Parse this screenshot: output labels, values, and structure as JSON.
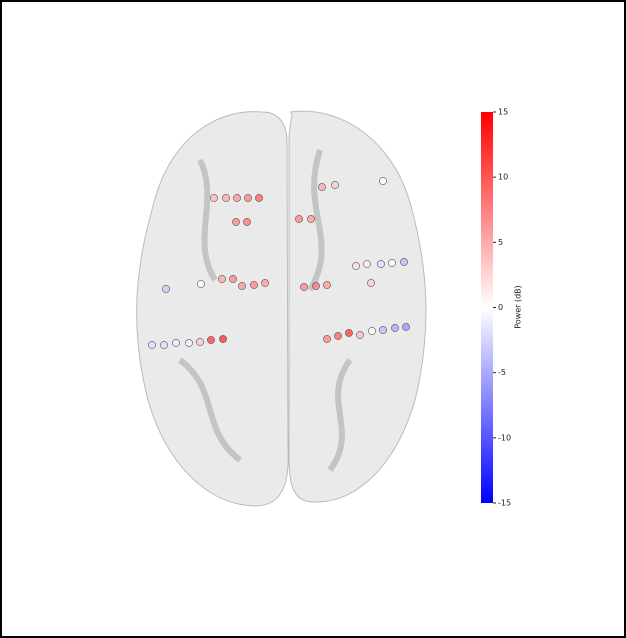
{
  "chart_data": {
    "type": "electrodes",
    "colorbar_label": "Power (dB)",
    "clim": [
      -15,
      15
    ],
    "cticks": [
      -15,
      -10,
      -5,
      0,
      5,
      10,
      15
    ],
    "cmap": "bwr",
    "values": [
      4,
      5,
      6,
      7,
      9,
      7,
      8,
      5,
      7,
      6,
      7,
      6,
      0,
      -3,
      -2,
      -2,
      -1,
      -1,
      3,
      11,
      12,
      5,
      3,
      0,
      7,
      6,
      7,
      8,
      6,
      3,
      2,
      1,
      -2,
      0,
      -4,
      7,
      9,
      11,
      4,
      0,
      -4,
      -5,
      -6
    ]
  }
}
